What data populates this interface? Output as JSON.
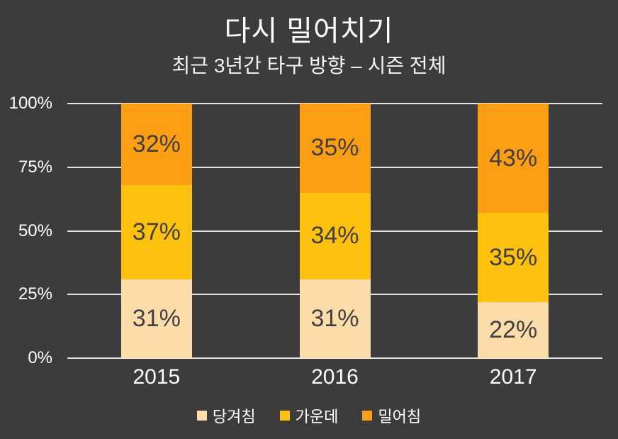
{
  "chart_data": {
    "type": "bar",
    "stacked": true,
    "title": "다시 밀어치기",
    "subtitle": "최근 3년간 타구 방향 – 시즌 전체",
    "categories": [
      "2015",
      "2016",
      "2017"
    ],
    "series": [
      {
        "key": "pull",
        "name": "당겨침",
        "color": "#FCDDA9",
        "values": [
          31,
          31,
          22
        ]
      },
      {
        "key": "center",
        "name": "가운데",
        "color": "#FEC10D",
        "values": [
          37,
          34,
          35
        ]
      },
      {
        "key": "push",
        "name": "밀어침",
        "color": "#FD9E13",
        "values": [
          32,
          35,
          43
        ]
      }
    ],
    "value_suffix": "%",
    "y_ticks": [
      "100%",
      "75%",
      "50%",
      "25%",
      "0%"
    ],
    "ylim": [
      0,
      100
    ],
    "grid": true,
    "legend_position": "bottom"
  },
  "colors": {
    "background": "#3C3C3C",
    "text": "#FFFFFF",
    "gridline": "#E2E2E2",
    "bar_label": "#404040"
  }
}
